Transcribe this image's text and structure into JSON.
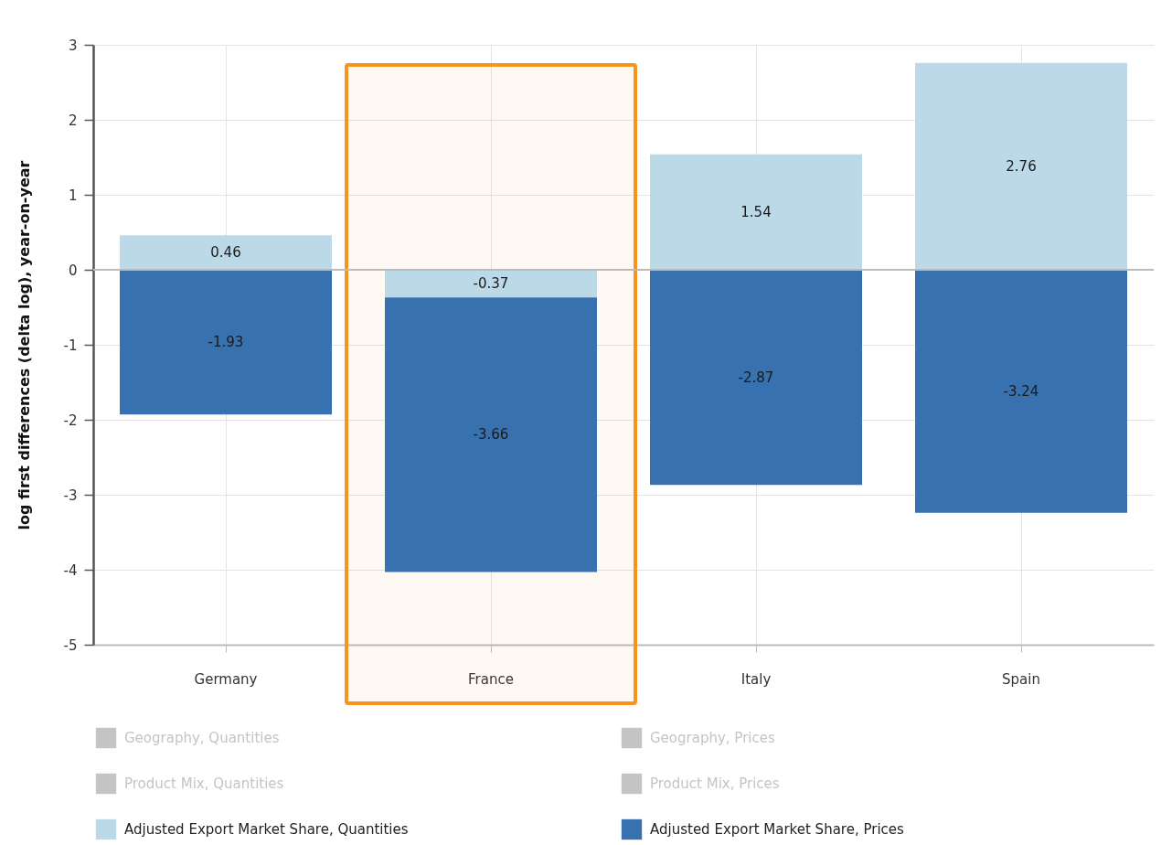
{
  "chart_data": {
    "type": "bar",
    "stacked": true,
    "categories": [
      "Germany",
      "France",
      "Italy",
      "Spain"
    ],
    "series": [
      {
        "name": "Geography, Quantities",
        "color": "#c4c4c4",
        "values": [
          null,
          null,
          null,
          null
        ]
      },
      {
        "name": "Geography, Prices",
        "color": "#c4c4c4",
        "values": [
          null,
          null,
          null,
          null
        ]
      },
      {
        "name": "Product Mix, Quantities",
        "color": "#c4c4c4",
        "values": [
          null,
          null,
          null,
          null
        ]
      },
      {
        "name": "Product Mix, Prices",
        "color": "#c4c4c4",
        "values": [
          null,
          null,
          null,
          null
        ]
      },
      {
        "name": "Adjusted Export Market Share, Quantities",
        "color": "#bcd9e8",
        "values": [
          0.46,
          -0.37,
          1.54,
          2.76
        ]
      },
      {
        "name": "Adjusted Export Market Share, Prices",
        "color": "#3871b0",
        "values": [
          -1.93,
          -3.66,
          -2.87,
          -3.24
        ]
      }
    ],
    "ylabel": "log first differences (delta log), year-on-year",
    "ylim": [
      -5,
      3
    ],
    "yticks": [
      -5,
      -4,
      -3,
      -2,
      -1,
      0,
      1,
      2,
      3
    ],
    "grid": true,
    "legend": "bottom",
    "data_labels": true,
    "ref_lines": [
      {
        "axis": "y",
        "value": 0,
        "color": "#bbbbbb"
      }
    ],
    "bands": [
      {
        "axis": "x",
        "from": "France",
        "to": "France",
        "color": "#f7931e"
      }
    ]
  }
}
